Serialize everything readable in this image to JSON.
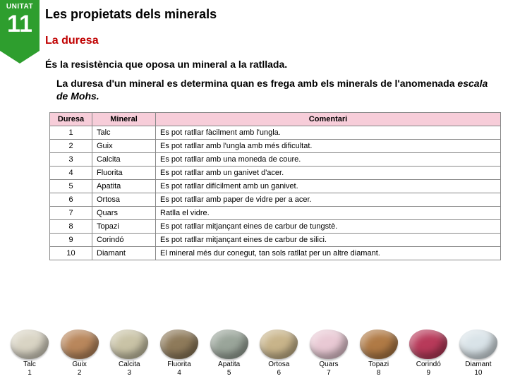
{
  "unit": {
    "label": "UNITAT",
    "number": "11"
  },
  "title": "Les propietats dels minerals",
  "subtitle": "La duresa",
  "definition": "És la resistència que oposa un mineral a la ratllada.",
  "description_pre": "La duresa d'un mineral es determina quan es frega amb els minerals de l'anomenada ",
  "description_em": "escala de Mohs.",
  "table": {
    "headers": {
      "duresa": "Duresa",
      "mineral": "Mineral",
      "comentari": "Comentari"
    },
    "header_bg": "#f7cdd9",
    "border_color": "#888888",
    "rows": [
      {
        "d": "1",
        "m": "Talc",
        "c": "Es pot ratllar fàcilment amb l'ungla."
      },
      {
        "d": "2",
        "m": "Guix",
        "c": "Es pot ratllar amb l'ungla amb més dificultat."
      },
      {
        "d": "3",
        "m": "Calcita",
        "c": "Es pot ratllar amb una moneda de coure."
      },
      {
        "d": "4",
        "m": "Fluorita",
        "c": "Es pot ratllar amb un ganivet d'acer."
      },
      {
        "d": "5",
        "m": "Apatita",
        "c": "Es pot ratllar difícilment amb un ganivet."
      },
      {
        "d": "6",
        "m": "Ortosa",
        "c": "Es pot ratllar amb paper de vidre per a acer."
      },
      {
        "d": "7",
        "m": "Quars",
        "c": "Ratlla el vidre."
      },
      {
        "d": "8",
        "m": "Topazi",
        "c": "Es pot ratllar mitjançant eines de carbur de tungstè."
      },
      {
        "d": "9",
        "m": "Corindó",
        "c": "Es pot ratllar mitjançant eines de carbur de silici."
      },
      {
        "d": "10",
        "m": "Diamant",
        "c": "El mineral més dur conegut, tan sols ratllat per un altre diamant."
      }
    ]
  },
  "gallery": [
    {
      "name": "Talc",
      "num": "1",
      "color": "#d9d4c4"
    },
    {
      "name": "Guix",
      "num": "2",
      "color": "#b9875c"
    },
    {
      "name": "Calcita",
      "num": "3",
      "color": "#c9c3a6"
    },
    {
      "name": "Fluorita",
      "num": "4",
      "color": "#8e7a5a"
    },
    {
      "name": "Apatita",
      "num": "5",
      "color": "#9aa59a"
    },
    {
      "name": "Ortosa",
      "num": "6",
      "color": "#c8b48a"
    },
    {
      "name": "Quars",
      "num": "7",
      "color": "#e9c9d4"
    },
    {
      "name": "Topazi",
      "num": "8",
      "color": "#b07a45"
    },
    {
      "name": "Corindó",
      "num": "9",
      "color": "#b83a5a"
    },
    {
      "name": "Diamant",
      "num": "10",
      "color": "#d9e3e8"
    }
  ]
}
